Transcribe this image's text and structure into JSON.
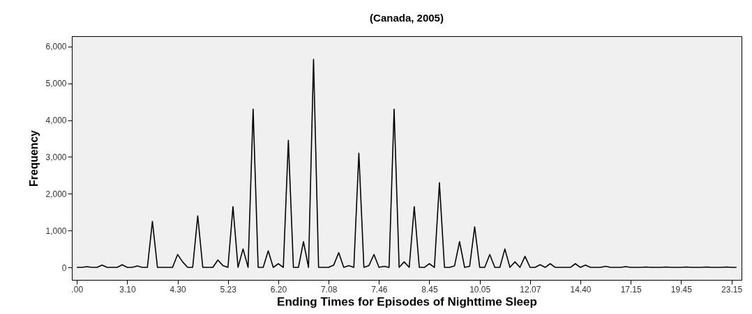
{
  "chart_data": {
    "type": "line",
    "title": "(Canada, 2005)",
    "xlabel": "Ending Times for Episodes of Nighttime Sleep",
    "ylabel": "Frequency",
    "categories": [
      ".00",
      null,
      null,
      null,
      null,
      null,
      null,
      null,
      null,
      null,
      "3.10",
      null,
      null,
      null,
      null,
      null,
      null,
      null,
      null,
      null,
      "4.30",
      null,
      null,
      null,
      null,
      null,
      null,
      null,
      null,
      null,
      "5.23",
      null,
      null,
      null,
      null,
      null,
      null,
      null,
      null,
      null,
      "6.20",
      null,
      null,
      null,
      null,
      null,
      null,
      null,
      null,
      null,
      "7.08",
      null,
      null,
      null,
      null,
      null,
      null,
      null,
      null,
      null,
      "7.46",
      null,
      null,
      null,
      null,
      null,
      null,
      null,
      null,
      null,
      "8.45",
      null,
      null,
      null,
      null,
      null,
      null,
      null,
      null,
      null,
      "10.05",
      null,
      null,
      null,
      null,
      null,
      null,
      null,
      null,
      null,
      "12.07",
      null,
      null,
      null,
      null,
      null,
      null,
      null,
      null,
      null,
      "14.40",
      null,
      null,
      null,
      null,
      null,
      null,
      null,
      null,
      null,
      "17.15",
      null,
      null,
      null,
      null,
      null,
      null,
      null,
      null,
      null,
      "19.45",
      null,
      null,
      null,
      null,
      null,
      null,
      null,
      null,
      null,
      "23.15",
      null
    ],
    "series": [
      {
        "color": "#000000",
        "values": [
          0,
          0,
          20,
          0,
          0,
          60,
          0,
          0,
          0,
          70,
          0,
          0,
          40,
          0,
          0,
          1250,
          0,
          0,
          0,
          0,
          350,
          150,
          0,
          0,
          1400,
          0,
          0,
          0,
          200,
          50,
          0,
          1650,
          0,
          500,
          0,
          4300,
          0,
          0,
          450,
          0,
          100,
          0,
          3450,
          0,
          0,
          700,
          0,
          5650,
          0,
          0,
          0,
          60,
          400,
          0,
          50,
          0,
          3100,
          0,
          50,
          350,
          0,
          30,
          0,
          4300,
          0,
          150,
          0,
          1650,
          0,
          0,
          100,
          0,
          2300,
          0,
          0,
          40,
          700,
          0,
          30,
          1100,
          0,
          0,
          350,
          0,
          0,
          500,
          0,
          150,
          0,
          300,
          0,
          0,
          70,
          0,
          100,
          0,
          0,
          0,
          0,
          100,
          0,
          60,
          0,
          0,
          0,
          30,
          0,
          0,
          0,
          20,
          0,
          0,
          0,
          10,
          0,
          0,
          0,
          10,
          0,
          0,
          0,
          10,
          0,
          0,
          0,
          10,
          0,
          0,
          0,
          10,
          0,
          0
        ]
      }
    ],
    "ylim": [
      -340,
      6280
    ],
    "yticks": [
      0,
      {
        "value": 1000,
        "label": "1,000"
      },
      {
        "value": 2000,
        "label": "2,000"
      },
      {
        "value": 3000,
        "label": "3,000"
      },
      {
        "value": 4000,
        "label": "4,000"
      },
      {
        "value": 5000,
        "label": "5,000"
      },
      {
        "value": 6000,
        "label": "6,000"
      }
    ],
    "grid": false,
    "marker": "none",
    "line_style": "solid"
  }
}
